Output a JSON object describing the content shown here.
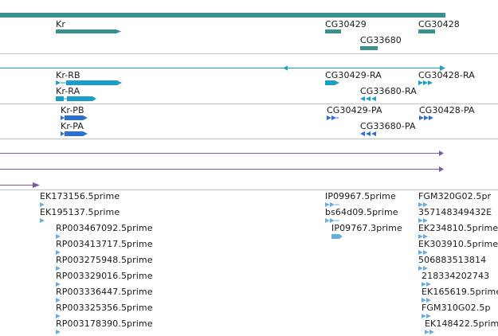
{
  "colors": {
    "gene": "#3a8f8f",
    "transcript": "#1aa0c8",
    "protein": "#2f6fd0",
    "segment": "#7a5aa8",
    "est": "#6aaee0",
    "separator": "#bfc4c8"
  },
  "gene_track": {
    "labels": {
      "kr": "Kr",
      "cg30429": "CG30429",
      "cg30428": "CG30428",
      "cg33680": "CG33680"
    }
  },
  "transcript_track": {
    "labels": {
      "kr_rb": "Kr-RB",
      "kr_ra": "Kr-RA",
      "cg30429_ra": "CG30429-RA",
      "cg30428_ra": "CG30428-RA",
      "cg33680_ra": "CG33680-RA"
    }
  },
  "protein_track": {
    "labels": {
      "kr_pb": "Kr-PB",
      "kr_pa": "Kr-PA",
      "cg30429_pa": "CG30429-PA",
      "cg30428_pa": "CG30428-PA",
      "cg33680_pa": "CG33680-PA"
    }
  },
  "est_track": {
    "col1": [
      "EK173156.5prime",
      "EK195137.5prime"
    ],
    "col2": [
      "RP003467092.5prime",
      "RP003413717.5prime",
      "RP003275948.5prime",
      "RP003329016.5prime",
      "RP003336447.5prime",
      "RP003325356.5prime",
      "RP003178390.5prime"
    ],
    "col3": [
      "IP09967.5prime",
      "bs64d09.5prime",
      "IP09767.3prime"
    ],
    "col4": [
      "FGM320G02.5pr",
      "357148349432E",
      "EK234810.5prime",
      "EK303910.5prime",
      "506883513814",
      "218334202743",
      "EK165619.5prime",
      "FGM310G02.5p",
      "EK148422.5prime"
    ]
  }
}
